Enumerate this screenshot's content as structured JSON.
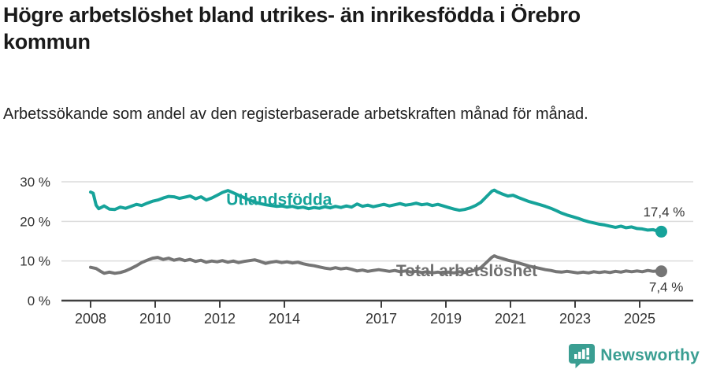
{
  "header": {
    "title": "Högre arbetslöshet bland utrikes- än inrikesfödda i Örebro kommun",
    "subtitle": "Arbetssökande som andel av den registerbaserade arbetskraften månad för månad."
  },
  "chart_data": {
    "type": "line",
    "unit": "%",
    "grid": "horizontal",
    "legend": "inline-labels",
    "xlim": [
      2007.1,
      2026.6
    ],
    "ylim": [
      0,
      30
    ],
    "colors": {
      "foreign_born": "#16a39a",
      "total": "#757575",
      "axis": "#3f3f3f",
      "gridline": "#dcdcdc",
      "ticktext": "#333333"
    },
    "y_ticks": [
      {
        "value": 30,
        "label": "30 %"
      },
      {
        "value": 20,
        "label": "20 %"
      },
      {
        "value": 10,
        "label": "10 %"
      },
      {
        "value": 0,
        "label": "0 %"
      }
    ],
    "x_ticks": [
      {
        "year": 2008,
        "label": "2008"
      },
      {
        "year": 2010,
        "label": "2010"
      },
      {
        "year": 2012,
        "label": "2012"
      },
      {
        "year": 2014,
        "label": "2014"
      },
      {
        "year": 2017,
        "label": "2017"
      },
      {
        "year": 2019,
        "label": "2019"
      },
      {
        "year": 2021,
        "label": "2021"
      },
      {
        "year": 2023,
        "label": "2023"
      },
      {
        "year": 2025,
        "label": "2025"
      }
    ],
    "series": [
      {
        "name": "Utlandsfödda",
        "color": "#16a39a",
        "end_value": 17.4,
        "end_label": "17,4 %",
        "points": [
          [
            2008.0,
            27.4
          ],
          [
            2008.08,
            27.1
          ],
          [
            2008.17,
            24.1
          ],
          [
            2008.25,
            23.2
          ],
          [
            2008.42,
            23.9
          ],
          [
            2008.58,
            23.1
          ],
          [
            2008.75,
            23.0
          ],
          [
            2008.92,
            23.6
          ],
          [
            2009.08,
            23.3
          ],
          [
            2009.25,
            23.8
          ],
          [
            2009.42,
            24.3
          ],
          [
            2009.58,
            24.0
          ],
          [
            2009.75,
            24.6
          ],
          [
            2009.92,
            25.1
          ],
          [
            2010.08,
            25.4
          ],
          [
            2010.25,
            25.9
          ],
          [
            2010.42,
            26.3
          ],
          [
            2010.58,
            26.2
          ],
          [
            2010.75,
            25.8
          ],
          [
            2010.92,
            26.1
          ],
          [
            2011.08,
            26.4
          ],
          [
            2011.25,
            25.7
          ],
          [
            2011.42,
            26.2
          ],
          [
            2011.58,
            25.4
          ],
          [
            2011.75,
            25.9
          ],
          [
            2011.92,
            26.6
          ],
          [
            2012.08,
            27.3
          ],
          [
            2012.25,
            27.8
          ],
          [
            2012.42,
            27.2
          ],
          [
            2012.58,
            26.6
          ],
          [
            2012.75,
            26.0
          ],
          [
            2012.92,
            25.4
          ],
          [
            2013.08,
            24.9
          ],
          [
            2013.25,
            24.5
          ],
          [
            2013.42,
            24.2
          ],
          [
            2013.58,
            24.0
          ],
          [
            2013.75,
            23.8
          ],
          [
            2013.92,
            23.9
          ],
          [
            2014.08,
            23.6
          ],
          [
            2014.25,
            23.8
          ],
          [
            2014.42,
            23.4
          ],
          [
            2014.58,
            23.6
          ],
          [
            2014.75,
            23.2
          ],
          [
            2014.92,
            23.5
          ],
          [
            2015.08,
            23.3
          ],
          [
            2015.25,
            23.7
          ],
          [
            2015.42,
            23.4
          ],
          [
            2015.58,
            23.8
          ],
          [
            2015.75,
            23.5
          ],
          [
            2015.92,
            23.9
          ],
          [
            2016.08,
            23.6
          ],
          [
            2016.25,
            24.4
          ],
          [
            2016.42,
            23.8
          ],
          [
            2016.58,
            24.1
          ],
          [
            2016.75,
            23.7
          ],
          [
            2016.92,
            24.0
          ],
          [
            2017.08,
            24.3
          ],
          [
            2017.25,
            23.9
          ],
          [
            2017.42,
            24.2
          ],
          [
            2017.58,
            24.5
          ],
          [
            2017.75,
            24.1
          ],
          [
            2017.92,
            24.3
          ],
          [
            2018.08,
            24.6
          ],
          [
            2018.25,
            24.2
          ],
          [
            2018.42,
            24.4
          ],
          [
            2018.58,
            24.0
          ],
          [
            2018.75,
            24.3
          ],
          [
            2018.92,
            23.9
          ],
          [
            2019.08,
            23.5
          ],
          [
            2019.25,
            23.1
          ],
          [
            2019.42,
            22.8
          ],
          [
            2019.58,
            23.0
          ],
          [
            2019.75,
            23.4
          ],
          [
            2019.92,
            24.0
          ],
          [
            2020.08,
            24.8
          ],
          [
            2020.25,
            26.2
          ],
          [
            2020.42,
            27.6
          ],
          [
            2020.5,
            27.9
          ],
          [
            2020.58,
            27.5
          ],
          [
            2020.75,
            26.9
          ],
          [
            2020.92,
            26.4
          ],
          [
            2021.08,
            26.6
          ],
          [
            2021.25,
            26.0
          ],
          [
            2021.42,
            25.5
          ],
          [
            2021.58,
            25.0
          ],
          [
            2021.75,
            24.6
          ],
          [
            2021.92,
            24.2
          ],
          [
            2022.08,
            23.8
          ],
          [
            2022.25,
            23.3
          ],
          [
            2022.42,
            22.7
          ],
          [
            2022.58,
            22.1
          ],
          [
            2022.75,
            21.6
          ],
          [
            2022.92,
            21.2
          ],
          [
            2023.08,
            20.8
          ],
          [
            2023.25,
            20.3
          ],
          [
            2023.42,
            19.9
          ],
          [
            2023.58,
            19.6
          ],
          [
            2023.75,
            19.3
          ],
          [
            2023.92,
            19.1
          ],
          [
            2024.08,
            18.8
          ],
          [
            2024.25,
            18.5
          ],
          [
            2024.42,
            18.8
          ],
          [
            2024.58,
            18.4
          ],
          [
            2024.75,
            18.6
          ],
          [
            2024.92,
            18.2
          ],
          [
            2025.08,
            18.1
          ],
          [
            2025.25,
            17.8
          ],
          [
            2025.42,
            17.9
          ],
          [
            2025.58,
            17.5
          ],
          [
            2025.67,
            17.4
          ]
        ]
      },
      {
        "name": "Total arbetslöshet",
        "color": "#757575",
        "end_value": 7.4,
        "end_label": "7,4 %",
        "points": [
          [
            2008.0,
            8.4
          ],
          [
            2008.17,
            8.1
          ],
          [
            2008.33,
            7.3
          ],
          [
            2008.42,
            6.9
          ],
          [
            2008.58,
            7.2
          ],
          [
            2008.75,
            6.9
          ],
          [
            2008.92,
            7.1
          ],
          [
            2009.08,
            7.5
          ],
          [
            2009.25,
            8.1
          ],
          [
            2009.42,
            8.8
          ],
          [
            2009.58,
            9.6
          ],
          [
            2009.75,
            10.2
          ],
          [
            2009.92,
            10.7
          ],
          [
            2010.08,
            10.9
          ],
          [
            2010.25,
            10.4
          ],
          [
            2010.42,
            10.7
          ],
          [
            2010.58,
            10.2
          ],
          [
            2010.75,
            10.5
          ],
          [
            2010.92,
            10.1
          ],
          [
            2011.08,
            10.4
          ],
          [
            2011.25,
            9.9
          ],
          [
            2011.42,
            10.2
          ],
          [
            2011.58,
            9.7
          ],
          [
            2011.75,
            10.0
          ],
          [
            2011.92,
            9.8
          ],
          [
            2012.08,
            10.1
          ],
          [
            2012.25,
            9.7
          ],
          [
            2012.42,
            10.0
          ],
          [
            2012.58,
            9.6
          ],
          [
            2012.75,
            9.9
          ],
          [
            2012.92,
            10.1
          ],
          [
            2013.08,
            10.3
          ],
          [
            2013.25,
            9.9
          ],
          [
            2013.42,
            9.4
          ],
          [
            2013.58,
            9.7
          ],
          [
            2013.75,
            9.9
          ],
          [
            2013.92,
            9.6
          ],
          [
            2014.08,
            9.8
          ],
          [
            2014.25,
            9.5
          ],
          [
            2014.42,
            9.7
          ],
          [
            2014.58,
            9.3
          ],
          [
            2014.75,
            9.0
          ],
          [
            2014.92,
            8.8
          ],
          [
            2015.08,
            8.5
          ],
          [
            2015.25,
            8.2
          ],
          [
            2015.42,
            8.0
          ],
          [
            2015.58,
            8.3
          ],
          [
            2015.75,
            8.0
          ],
          [
            2015.92,
            8.2
          ],
          [
            2016.08,
            7.9
          ],
          [
            2016.25,
            7.5
          ],
          [
            2016.42,
            7.7
          ],
          [
            2016.58,
            7.4
          ],
          [
            2016.75,
            7.6
          ],
          [
            2016.92,
            7.8
          ],
          [
            2017.08,
            7.6
          ],
          [
            2017.25,
            7.4
          ],
          [
            2017.42,
            7.6
          ],
          [
            2017.58,
            7.3
          ],
          [
            2017.75,
            7.5
          ],
          [
            2017.92,
            7.2
          ],
          [
            2018.08,
            7.4
          ],
          [
            2018.25,
            7.1
          ],
          [
            2018.42,
            7.3
          ],
          [
            2018.58,
            7.0
          ],
          [
            2018.75,
            7.2
          ],
          [
            2018.92,
            7.0
          ],
          [
            2019.08,
            7.2
          ],
          [
            2019.25,
            7.0
          ],
          [
            2019.42,
            7.3
          ],
          [
            2019.58,
            7.1
          ],
          [
            2019.75,
            7.4
          ],
          [
            2019.92,
            7.7
          ],
          [
            2020.08,
            8.3
          ],
          [
            2020.25,
            9.6
          ],
          [
            2020.42,
            10.9
          ],
          [
            2020.5,
            11.3
          ],
          [
            2020.58,
            11.0
          ],
          [
            2020.75,
            10.6
          ],
          [
            2020.92,
            10.2
          ],
          [
            2021.08,
            9.9
          ],
          [
            2021.25,
            9.5
          ],
          [
            2021.42,
            9.1
          ],
          [
            2021.58,
            8.7
          ],
          [
            2021.75,
            8.4
          ],
          [
            2021.92,
            8.1
          ],
          [
            2022.08,
            7.8
          ],
          [
            2022.25,
            7.6
          ],
          [
            2022.42,
            7.3
          ],
          [
            2022.58,
            7.2
          ],
          [
            2022.75,
            7.4
          ],
          [
            2022.92,
            7.2
          ],
          [
            2023.08,
            7.0
          ],
          [
            2023.25,
            7.2
          ],
          [
            2023.42,
            7.0
          ],
          [
            2023.58,
            7.3
          ],
          [
            2023.75,
            7.1
          ],
          [
            2023.92,
            7.3
          ],
          [
            2024.08,
            7.1
          ],
          [
            2024.25,
            7.4
          ],
          [
            2024.42,
            7.2
          ],
          [
            2024.58,
            7.5
          ],
          [
            2024.75,
            7.3
          ],
          [
            2024.92,
            7.5
          ],
          [
            2025.08,
            7.3
          ],
          [
            2025.25,
            7.6
          ],
          [
            2025.42,
            7.4
          ],
          [
            2025.58,
            7.5
          ],
          [
            2025.67,
            7.4
          ]
        ]
      }
    ],
    "annotations": [
      {
        "text": "Utlandsfödda",
        "x": 2012.2,
        "y": 25.5,
        "anchor": "start",
        "cls": "ann-series",
        "color": "#16a39a",
        "name": "series-label-utlandsfodda"
      },
      {
        "text": "Total arbetslöshet",
        "x": 2017.46,
        "y": 7.55,
        "anchor": "start",
        "cls": "ann-series",
        "color": "#6f6f6f",
        "name": "series-label-total"
      },
      {
        "text": "17,4 %",
        "x": 2026.4,
        "y": 22.6,
        "anchor": "end",
        "cls": "ann-value",
        "color": "#333333",
        "name": "end-value-utlandsfodda"
      },
      {
        "text": "7,4 %",
        "x": 2026.35,
        "y": 3.7,
        "anchor": "end",
        "cls": "ann-value",
        "color": "#333333",
        "name": "end-value-total"
      }
    ]
  },
  "footer": {
    "brand": "Newsworthy"
  }
}
